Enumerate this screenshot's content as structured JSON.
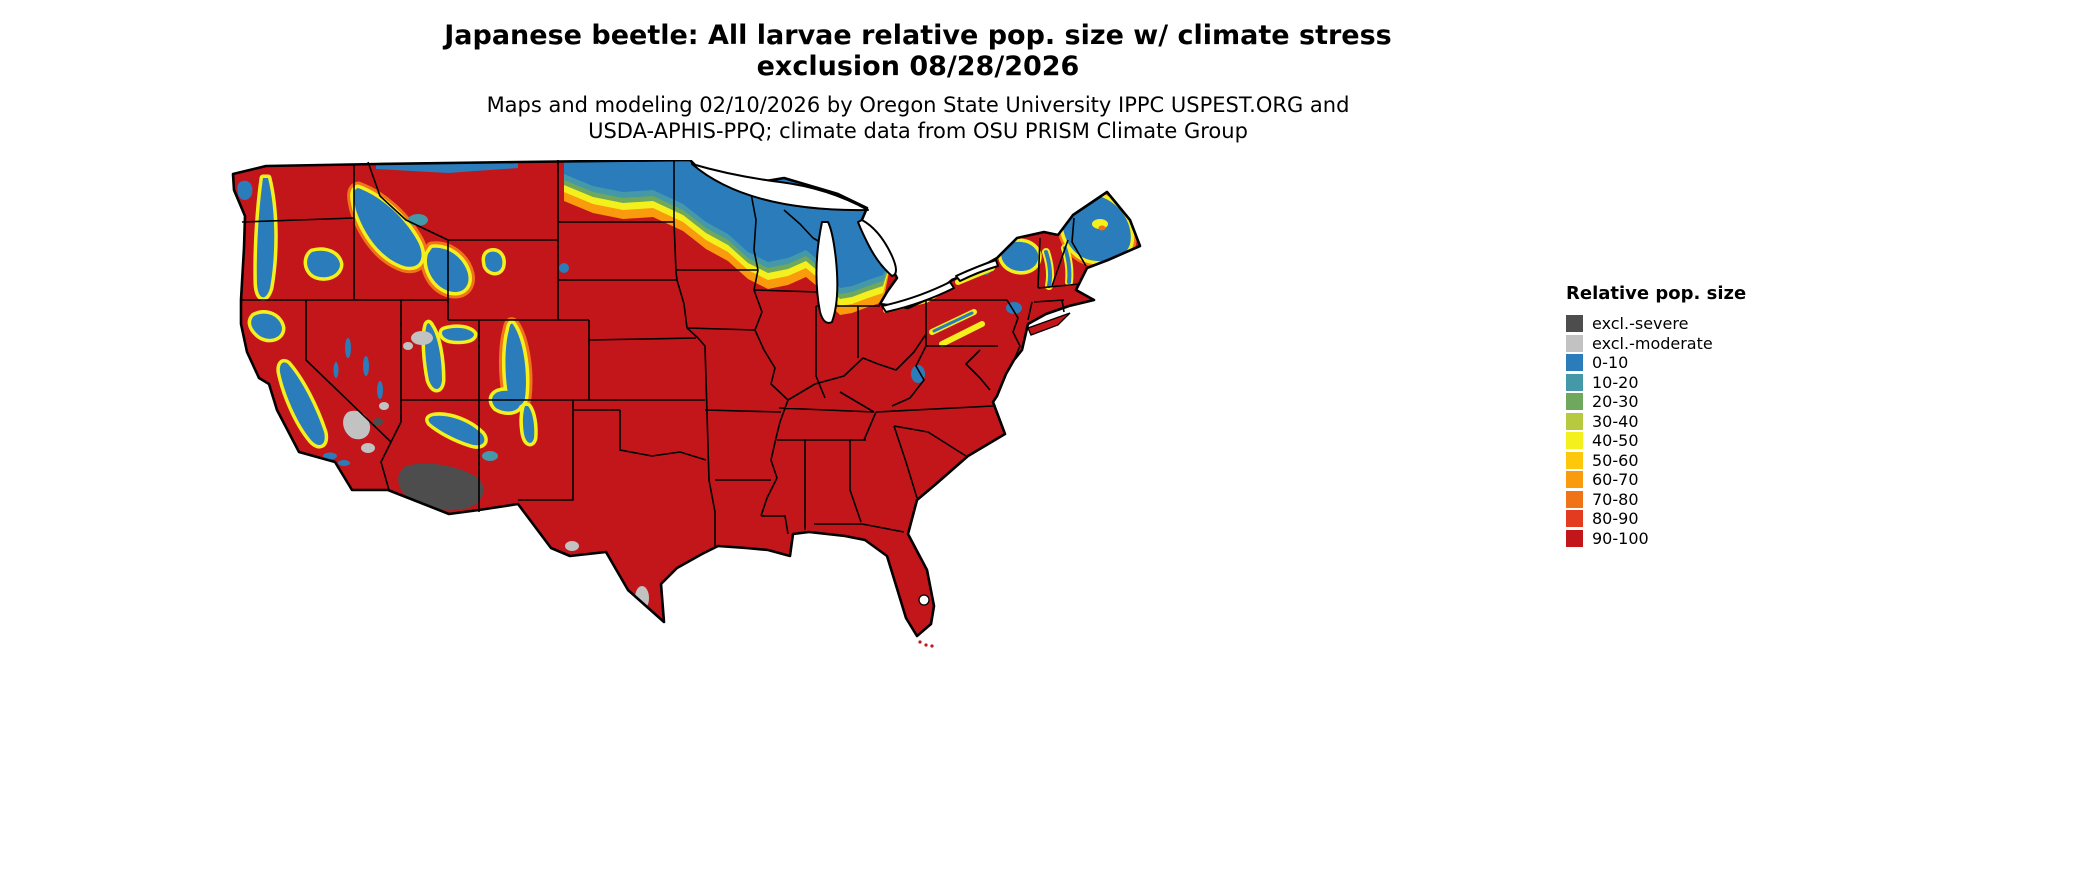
{
  "title": {
    "line1": "Japanese beetle: All larvae relative pop. size w/ climate stress",
    "line2": "exclusion 08/28/2026"
  },
  "subtitle": {
    "line1": "Maps and modeling 02/10/2026 by Oregon State University IPPC USPEST.ORG and",
    "line2": "USDA-APHIS-PPQ; climate data from OSU PRISM Climate Group"
  },
  "legend": {
    "title": "Relative pop. size",
    "items": [
      {
        "label": "excl.-severe",
        "color": "#4d4d4d"
      },
      {
        "label": "excl.-moderate",
        "color": "#c2c2c2"
      },
      {
        "label": "0-10",
        "color": "#2b7cba"
      },
      {
        "label": "10-20",
        "color": "#4498a8"
      },
      {
        "label": "20-30",
        "color": "#6fa85c"
      },
      {
        "label": "30-40",
        "color": "#b6c93f"
      },
      {
        "label": "40-50",
        "color": "#f4f01e"
      },
      {
        "label": "50-60",
        "color": "#fdc70c"
      },
      {
        "label": "60-70",
        "color": "#f99b0c"
      },
      {
        "label": "70-80",
        "color": "#f07318"
      },
      {
        "label": "80-90",
        "color": "#e23b20"
      },
      {
        "label": "90-100",
        "color": "#c2161b"
      }
    ]
  },
  "map": {
    "region_shown": "Contiguous United States",
    "border_color": "#000000",
    "water_color": "#ffffff",
    "background": "#ffffff",
    "visual_summary": [
      "Most of the central, southern and eastern US is in the 90-100 class (dark red)",
      "0-10 (blue) band along the northern border: northern Montana, North Dakota, Minnesota, northern Wisconsin, Michigan, Adirondacks and northern New England / Maine",
      "Yellow-orange transition fringe between blue and red zones across the upper Midwest and Great Lakes",
      "Blue mountain-range patches across the West: Cascades, Olympics, Sierra Nevada, Idaho/Montana Rockies, Yellowstone, Wasatch, Colorado Rockies, Mogollon Rim",
      "excl.-severe (dark gray) region in southern Arizona desert",
      "excl.-moderate (light gray) patches in the Mojave Desert, Great Salt Lake area, Big Bend and south Texas"
    ]
  }
}
